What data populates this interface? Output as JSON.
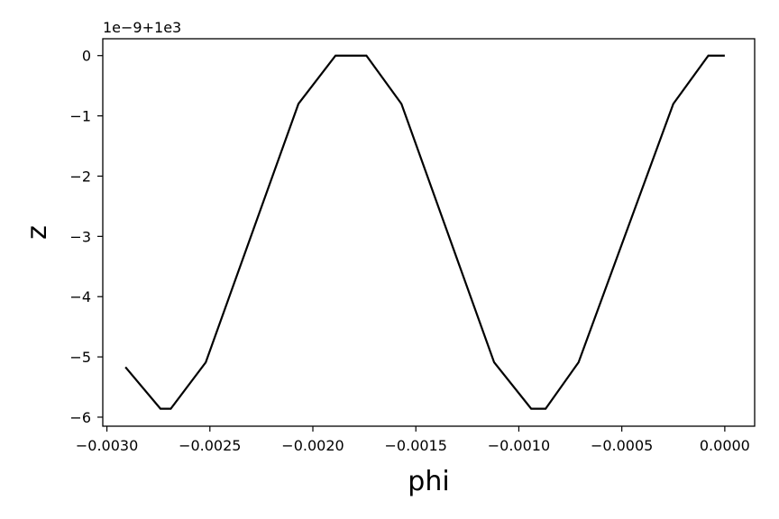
{
  "chart_data": {
    "type": "line",
    "title": "",
    "xlabel": "phi",
    "ylabel": "z",
    "y_offset_label": "1e−9+1e3",
    "xlim": [
      -0.00302,
      0.000145
    ],
    "ylim": [
      -6.15,
      0.28
    ],
    "grid": false,
    "line_color": "#000000",
    "xticks": [
      {
        "value": -0.003,
        "label": "−0.0030"
      },
      {
        "value": -0.0025,
        "label": "−0.0025"
      },
      {
        "value": -0.002,
        "label": "−0.0020"
      },
      {
        "value": -0.0015,
        "label": "−0.0015"
      },
      {
        "value": -0.001,
        "label": "−0.0010"
      },
      {
        "value": -0.0005,
        "label": "−0.0005"
      },
      {
        "value": 0.0,
        "label": "0.0000"
      }
    ],
    "yticks": [
      {
        "value": 0,
        "label": "0"
      },
      {
        "value": -1,
        "label": "−1"
      },
      {
        "value": -2,
        "label": "−2"
      },
      {
        "value": -3,
        "label": "−3"
      },
      {
        "value": -4,
        "label": "−4"
      },
      {
        "value": -5,
        "label": "−5"
      },
      {
        "value": -6,
        "label": "−6"
      }
    ],
    "series": [
      {
        "x": [
          -0.00291,
          -0.00274,
          -0.00269,
          -0.00252,
          -0.00207,
          -0.00189,
          -0.00174,
          -0.00157,
          -0.00112,
          -0.00094,
          -0.00087,
          -0.00071,
          -0.00025,
          -8e-05,
          0.0
        ],
        "y": [
          -5.17,
          -5.86,
          -5.86,
          -5.09,
          -0.8,
          0.0,
          0.0,
          -0.8,
          -5.09,
          -5.86,
          -5.86,
          -5.09,
          -0.8,
          0.0,
          0.0
        ]
      }
    ]
  }
}
